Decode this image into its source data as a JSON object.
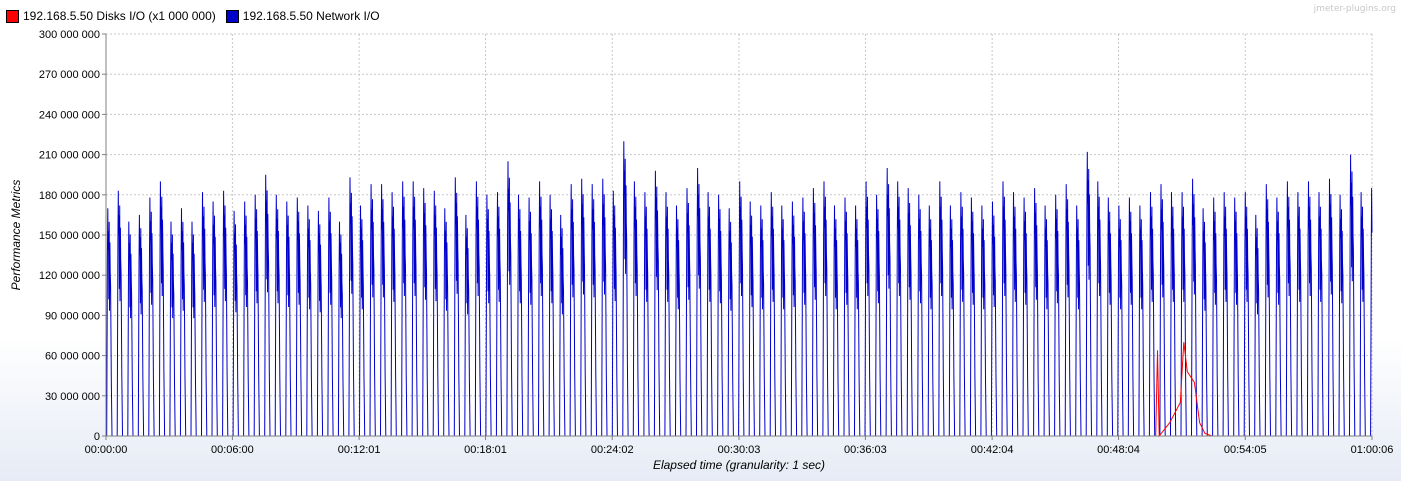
{
  "watermark": "jmeter-plugins.org",
  "chart_data": {
    "type": "line",
    "xlabel": "Elapsed time (granularity: 1 sec)",
    "ylabel": "Performance Metrics",
    "ylim": [
      0,
      300000000
    ],
    "yticks": [
      {
        "value": 0,
        "label": "0"
      },
      {
        "value": 30000000,
        "label": "30 000 000"
      },
      {
        "value": 60000000,
        "label": "60 000 000"
      },
      {
        "value": 90000000,
        "label": "90 000 000"
      },
      {
        "value": 120000000,
        "label": "120 000 000"
      },
      {
        "value": 150000000,
        "label": "150 000 000"
      },
      {
        "value": 180000000,
        "label": "180 000 000"
      },
      {
        "value": 210000000,
        "label": "210 000 000"
      },
      {
        "value": 240000000,
        "label": "240 000 000"
      },
      {
        "value": 270000000,
        "label": "270 000 000"
      },
      {
        "value": 300000000,
        "label": "300 000 000"
      }
    ],
    "xlim": [
      "00:00:00",
      "01:00:06"
    ],
    "xticks": [
      "00:00:00",
      "00:06:00",
      "00:12:01",
      "00:18:01",
      "00:24:02",
      "00:30:03",
      "00:36:03",
      "00:42:04",
      "00:48:04",
      "00:54:05",
      "01:00:06"
    ],
    "grid": true,
    "legend_position": "top-left",
    "series": [
      {
        "name": "192.168.5.50 Disks I/O (x1 000 000)",
        "color": "#ff0000",
        "points": [
          [
            "00:00:00",
            0
          ],
          [
            "00:49:50",
            0
          ],
          [
            "00:49:55",
            64000000
          ],
          [
            "00:50:00",
            0
          ],
          [
            "00:50:30",
            10000000
          ],
          [
            "00:51:00",
            25000000
          ],
          [
            "00:51:10",
            70000000
          ],
          [
            "00:51:20",
            48000000
          ],
          [
            "00:51:40",
            40000000
          ],
          [
            "00:51:55",
            10000000
          ],
          [
            "00:52:10",
            2000000
          ],
          [
            "00:52:30",
            0
          ],
          [
            "01:00:06",
            0
          ]
        ]
      },
      {
        "name": "192.168.5.50 Network I/O",
        "color": "#0000cc",
        "cycle_seconds": 30,
        "peaks": [
          170,
          183,
          160,
          165,
          178,
          190,
          160,
          170,
          160,
          182,
          175,
          183,
          168,
          175,
          180,
          195,
          180,
          175,
          178,
          172,
          168,
          178,
          160,
          193,
          172,
          188,
          188,
          182,
          190,
          190,
          185,
          183,
          170,
          193,
          165,
          190,
          180,
          182,
          205,
          180,
          178,
          190,
          180,
          165,
          188,
          192,
          188,
          192,
          183,
          220,
          190,
          182,
          198,
          182,
          172,
          185,
          200,
          182,
          180,
          170,
          190,
          175,
          172,
          182,
          172,
          175,
          178,
          185,
          190,
          172,
          178,
          172,
          190,
          180,
          200,
          190,
          185,
          180,
          172,
          190,
          172,
          182,
          178,
          172,
          175,
          190,
          182,
          178,
          185,
          172,
          180,
          188,
          172,
          212,
          190,
          178,
          172,
          178,
          172,
          182,
          188,
          182,
          182,
          192,
          170,
          178,
          182,
          178,
          182,
          165,
          188,
          178,
          190,
          182,
          190,
          182,
          192,
          180,
          210,
          182,
          185
        ]
      }
    ]
  }
}
